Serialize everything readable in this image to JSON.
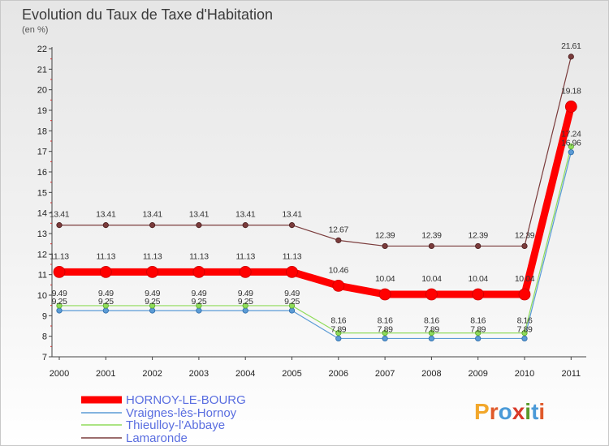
{
  "chart_data": {
    "type": "line",
    "title": "Evolution du Taux de Taxe d'Habitation",
    "subtitle": "(en %)",
    "xlabel": "",
    "ylabel": "(en %)",
    "categories": [
      "2000",
      "2001",
      "2002",
      "2003",
      "2004",
      "2005",
      "2006",
      "2007",
      "2008",
      "2009",
      "2010",
      "2011"
    ],
    "ylim": [
      7,
      22
    ],
    "yticks": [
      7,
      8,
      9,
      10,
      11,
      12,
      13,
      14,
      15,
      16,
      17,
      18,
      19,
      20,
      21,
      22
    ],
    "grid": false,
    "series": [
      {
        "name": "HORNOY-LE-BOURG",
        "color": "#ff0000",
        "values": [
          11.13,
          11.13,
          11.13,
          11.13,
          11.13,
          11.13,
          10.46,
          10.04,
          10.04,
          10.04,
          10.04,
          19.18
        ],
        "labels": [
          "11.13",
          "11.13",
          "11.13",
          "11.13",
          "11.13",
          "11.13",
          "10.46",
          "10.04",
          "10.04",
          "10.04",
          "10.04",
          "19.18"
        ]
      },
      {
        "name": "Vraignes-lès-Hornoy",
        "color": "#5b9bd5",
        "values": [
          9.25,
          9.25,
          9.25,
          9.25,
          9.25,
          9.25,
          7.89,
          7.89,
          7.89,
          7.89,
          7.89,
          16.96
        ],
        "labels": [
          "9.25",
          "9.25",
          "9.25",
          "9.25",
          "9.25",
          "9.25",
          "7.89",
          "7.89",
          "7.89",
          "7.89",
          "7.89",
          "16.96"
        ]
      },
      {
        "name": "Thieulloy-l'Abbaye",
        "color": "#8fdc5a",
        "values": [
          9.49,
          9.49,
          9.49,
          9.49,
          9.49,
          9.49,
          8.16,
          8.16,
          8.16,
          8.16,
          8.16,
          17.24
        ],
        "labels": [
          "9.49",
          "9.49",
          "9.49",
          "9.49",
          "9.49",
          "9.49",
          "8.16",
          "8.16",
          "8.16",
          "8.16",
          "8.16",
          "17.24"
        ]
      },
      {
        "name": "Lamaronde",
        "color": "#7a3b3b",
        "values": [
          13.41,
          13.41,
          13.41,
          13.41,
          13.41,
          13.41,
          12.67,
          12.39,
          12.39,
          12.39,
          12.39,
          21.61
        ],
        "labels": [
          "13.41",
          "13.41",
          "13.41",
          "13.41",
          "13.41",
          "13.41",
          "12.67",
          "12.39",
          "12.39",
          "12.39",
          "12.39",
          "21.61"
        ]
      }
    ],
    "legend": {
      "position": "bottom-left",
      "entries": [
        "HORNOY-LE-BOURG",
        "Vraignes-lès-Hornoy",
        "Thieulloy-l'Abbaye",
        "Lamaronde"
      ]
    }
  },
  "logo": {
    "text": "Proxiti",
    "colors": [
      "#f2a72b",
      "#e05a2b",
      "#4a9ad8",
      "#d83a2a",
      "#5a9a2a",
      "#4a9ad8",
      "#e05a2b"
    ]
  }
}
